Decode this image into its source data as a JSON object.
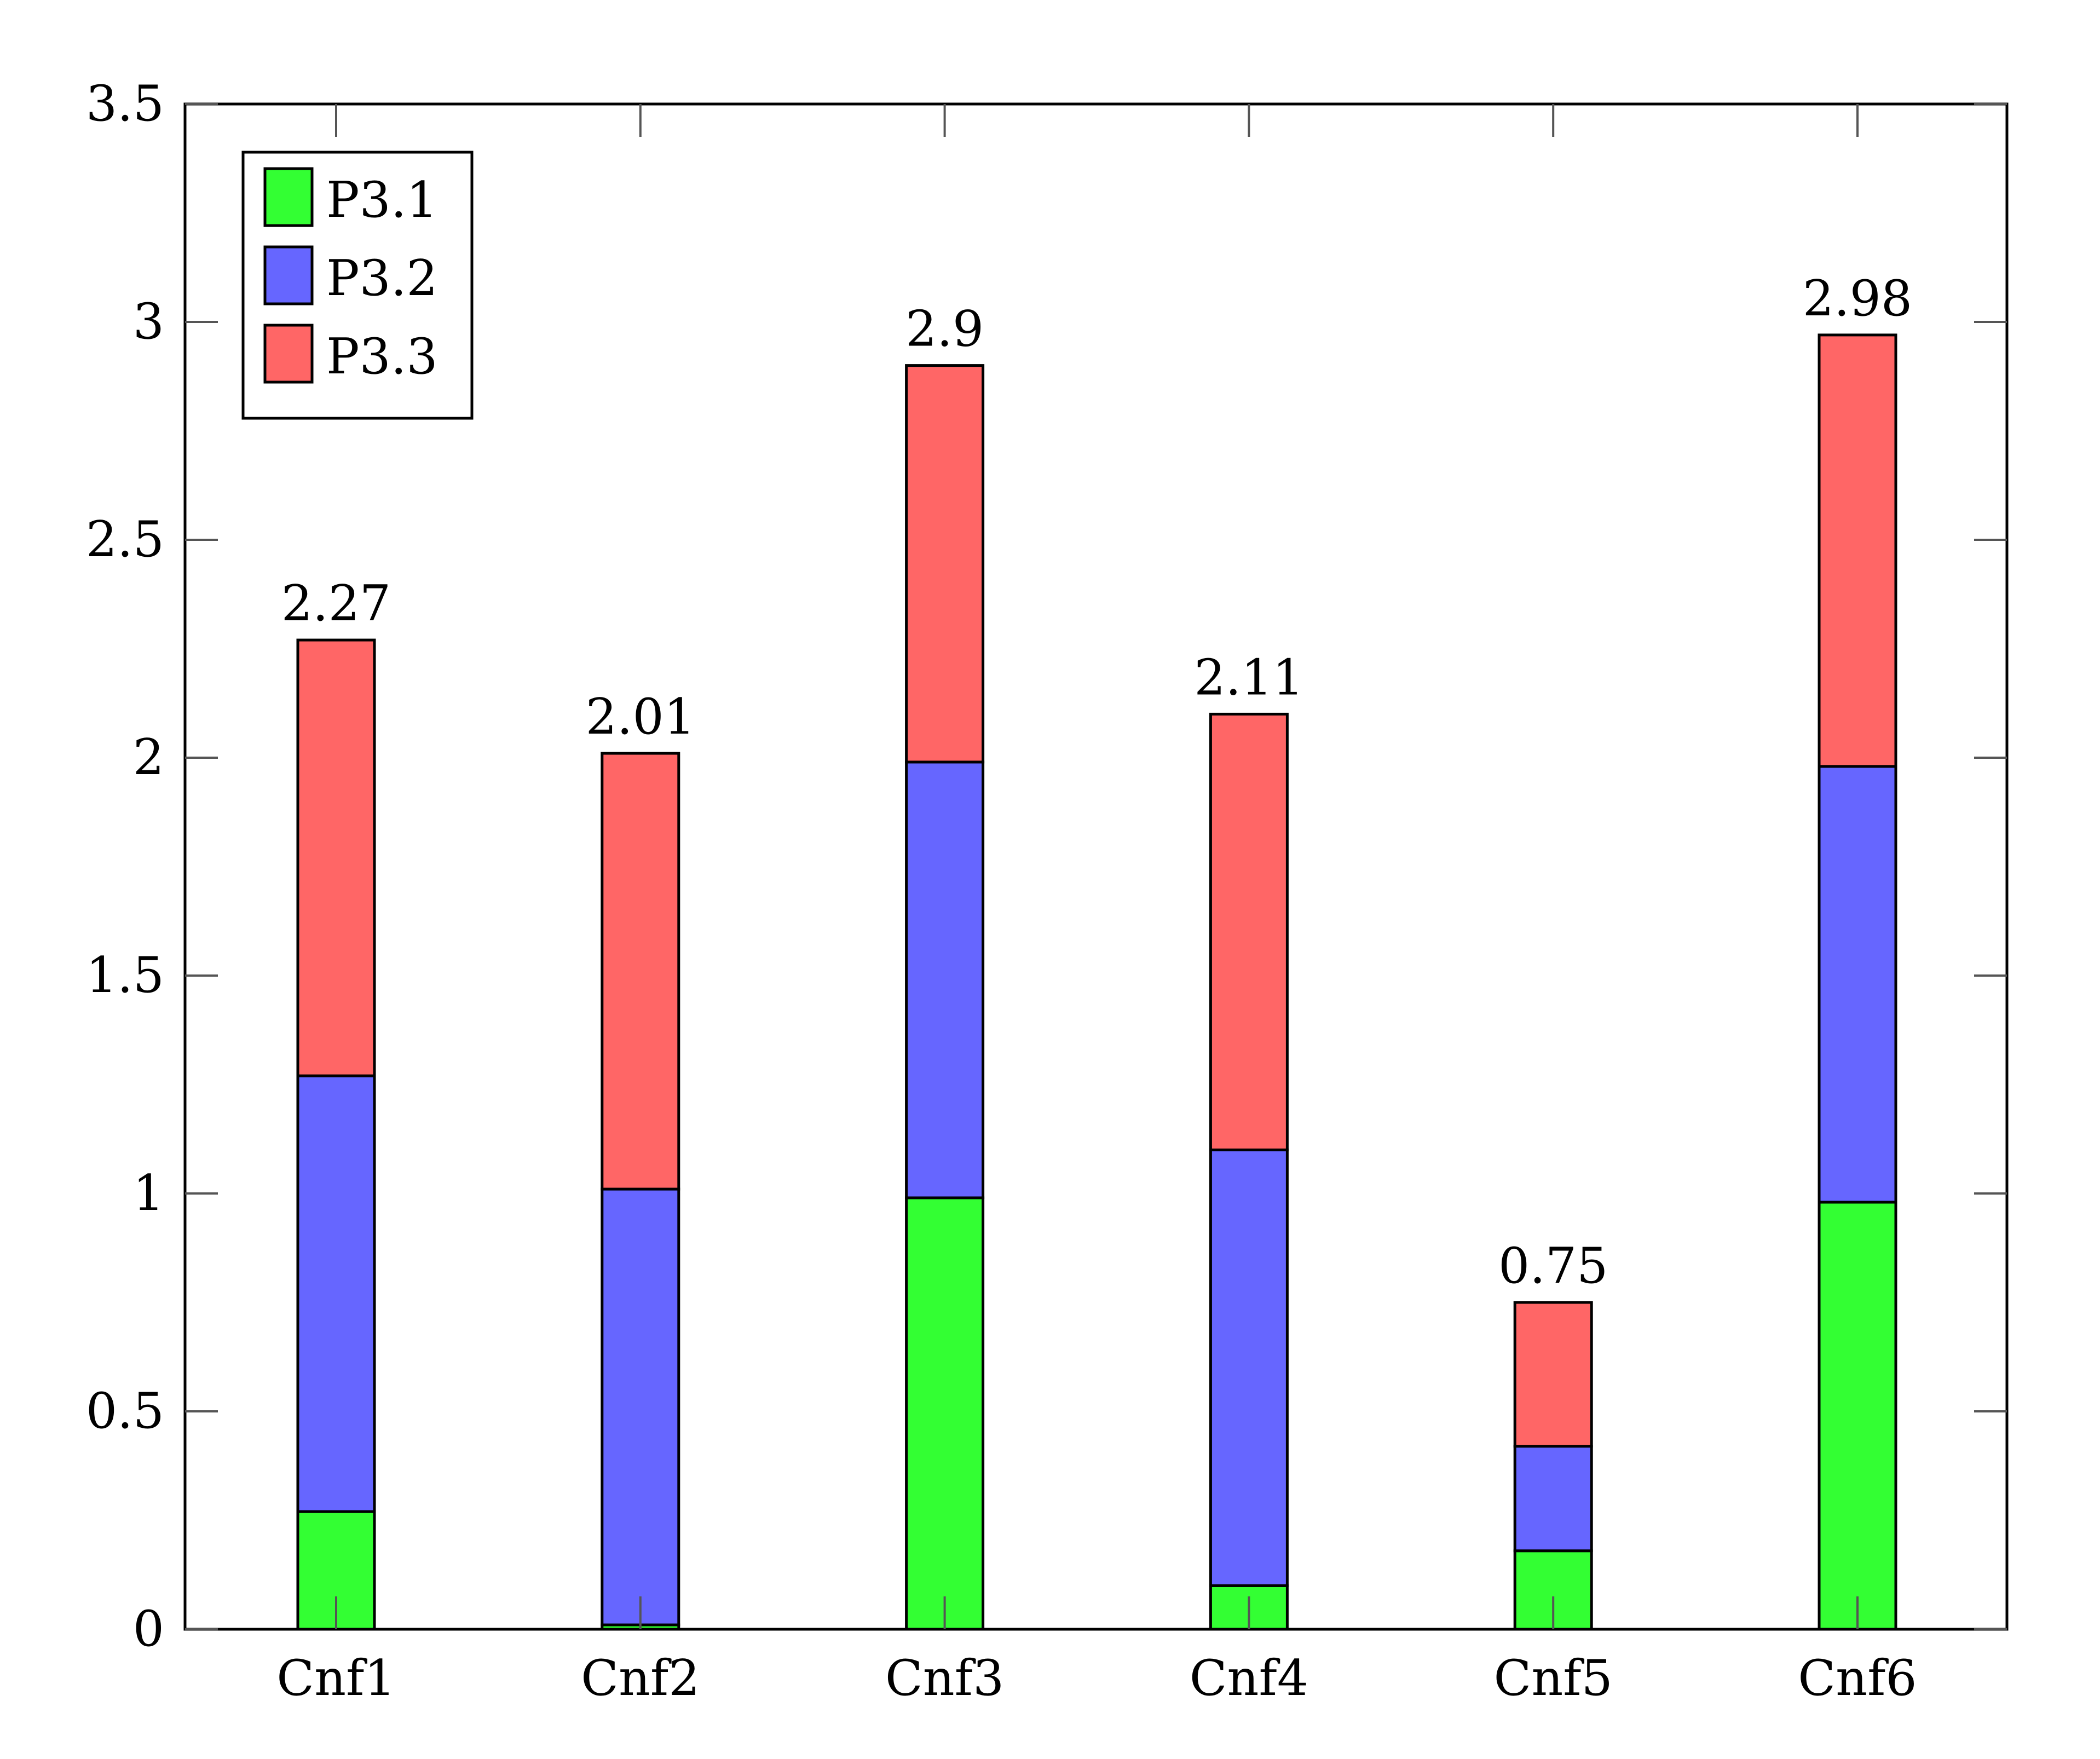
{
  "chart_data": {
    "type": "bar",
    "stacked": true,
    "title": "",
    "xlabel": "",
    "ylabel": "",
    "categories": [
      "Cnf1",
      "Cnf2",
      "Cnf3",
      "Cnf4",
      "Cnf5",
      "Cnf6"
    ],
    "series": [
      {
        "name": "P3.1",
        "color": "#33ff33",
        "values": [
          0.27,
          0.01,
          0.99,
          0.1,
          0.18,
          0.98
        ]
      },
      {
        "name": "P3.2",
        "color": "#6666ff",
        "values": [
          1.0,
          1.0,
          1.0,
          1.0,
          0.24,
          1.0
        ]
      },
      {
        "name": "P3.3",
        "color": "#ff6666",
        "values": [
          1.0,
          1.0,
          0.91,
          1.0,
          0.33,
          0.99
        ]
      }
    ],
    "totals": [
      2.27,
      2.01,
      2.9,
      2.11,
      0.75,
      2.98
    ],
    "total_labels": [
      "2.27",
      "2.01",
      "2.9",
      "2.11",
      "0.75",
      "2.98"
    ],
    "ylim": [
      0,
      3.5
    ],
    "yticks": [
      0,
      0.5,
      1,
      1.5,
      2,
      2.5,
      3,
      3.5
    ],
    "ytick_labels": [
      "0",
      "0.5",
      "1",
      "1.5",
      "2",
      "2.5",
      "3",
      "3.5"
    ],
    "grid": false,
    "legend_position": "top-left"
  }
}
